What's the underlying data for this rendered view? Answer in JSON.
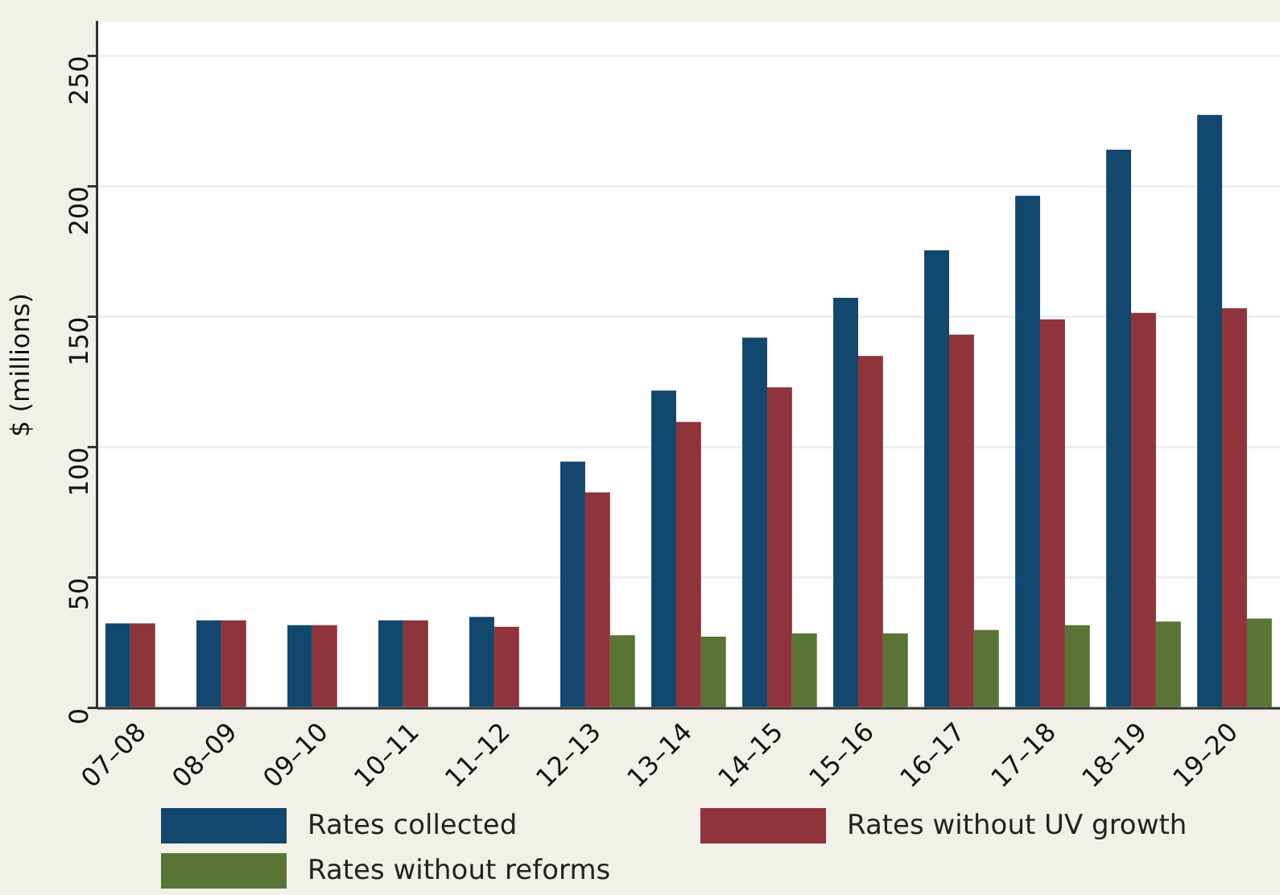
{
  "chart_data": {
    "type": "bar",
    "ylabel": "$ (millions)",
    "categories": [
      "07–08",
      "08–09",
      "09–10",
      "10–11",
      "11–12",
      "12–13",
      "13–14",
      "14–15",
      "15–16",
      "16–17",
      "17–18",
      "18–19",
      "19–20"
    ],
    "series": [
      {
        "name": "Rates collected",
        "color": "#12476e",
        "values": [
          32.5,
          33.7,
          31.8,
          33.7,
          35,
          94.5,
          121.7,
          142,
          157.3,
          175.5,
          196.4,
          214,
          227.4
        ]
      },
      {
        "name": "Rates without UV growth",
        "color": "#8f343a",
        "values": [
          32.5,
          33.7,
          31.8,
          33.7,
          31.2,
          82.7,
          109.7,
          123,
          135,
          143.2,
          149,
          151.5,
          153.3
        ]
      },
      {
        "name": "Rates without reforms",
        "color": "#587535",
        "values": [
          null,
          null,
          null,
          null,
          null,
          28,
          27.4,
          28.7,
          28.7,
          30,
          31.8,
          33.2,
          34.4
        ]
      }
    ],
    "ylim": [
      0,
      263
    ],
    "yticks": [
      0,
      50,
      100,
      150,
      200,
      250
    ],
    "grid": "y",
    "legend": "bottom"
  }
}
